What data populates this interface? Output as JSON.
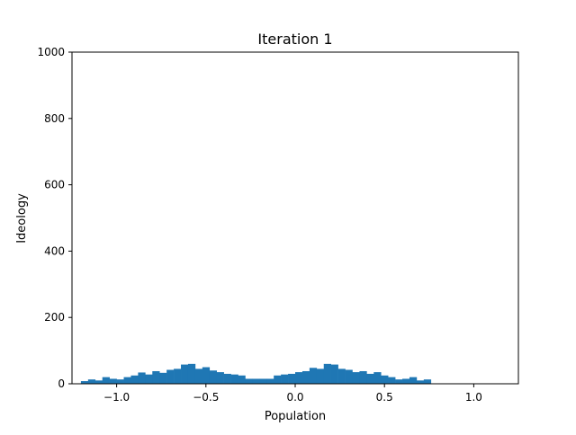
{
  "chart_data": {
    "type": "bar",
    "title": "Iteration 1",
    "xlabel": "Population",
    "ylabel": "Ideology",
    "xlim": [
      -1.25,
      1.25
    ],
    "ylim": [
      0,
      1000
    ],
    "xticks": [
      -1.0,
      -0.5,
      0.0,
      0.5,
      1.0
    ],
    "xtick_labels": [
      "−1.0",
      "−0.5",
      "0.0",
      "0.5",
      "1.0"
    ],
    "yticks": [
      0,
      200,
      400,
      600,
      800,
      1000
    ],
    "ytick_labels": [
      "0",
      "200",
      "400",
      "600",
      "800",
      "1000"
    ],
    "grid": false,
    "bar_color": "#1f77b4",
    "bin_edges_start": -1.2,
    "bin_width": 0.04,
    "values": [
      8,
      13,
      10,
      20,
      15,
      13,
      20,
      25,
      34,
      28,
      38,
      33,
      42,
      45,
      58,
      60,
      45,
      50,
      40,
      35,
      30,
      28,
      25,
      15,
      15,
      15,
      15,
      25,
      28,
      30,
      35,
      38,
      48,
      45,
      60,
      58,
      45,
      42,
      35,
      38,
      30,
      35,
      25,
      20,
      13,
      15,
      20,
      10,
      13
    ]
  }
}
